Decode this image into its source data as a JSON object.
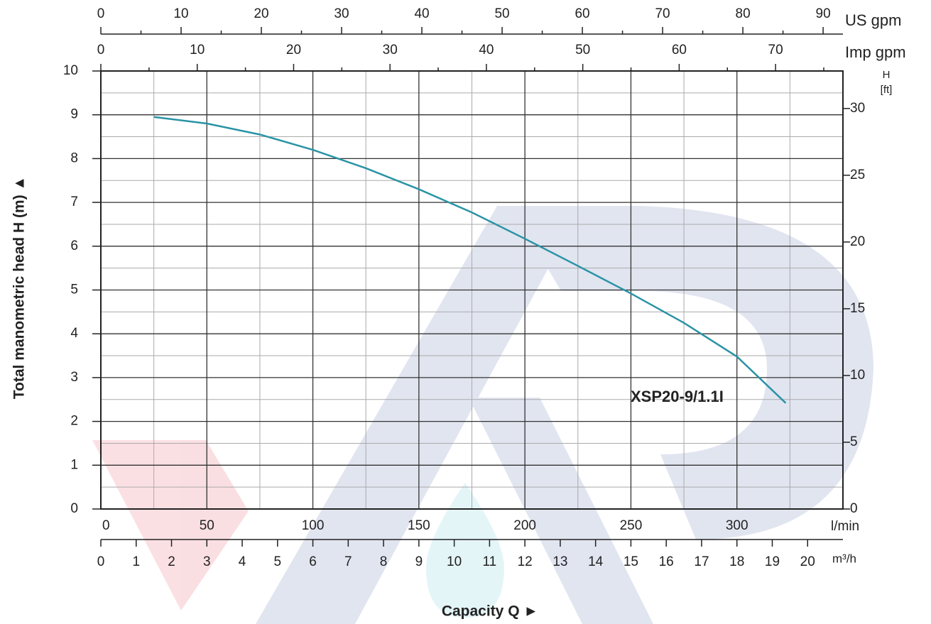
{
  "chart_data": {
    "type": "line",
    "xlabel": "Capacity Q ►",
    "ylabel": "Total manometric head H (m) ▲",
    "xunit": "l/min",
    "xlim": [
      0,
      350
    ],
    "xticks": [
      0,
      50,
      100,
      150,
      200,
      250,
      300
    ],
    "minor_xticks": [
      25,
      75,
      125,
      175,
      225,
      275,
      325
    ],
    "ylim": [
      0,
      10
    ],
    "yticks": [
      0,
      1,
      2,
      3,
      4,
      5,
      6,
      7,
      8,
      9,
      10
    ],
    "minor_yticks": [
      0.5,
      1.5,
      2.5,
      3.5,
      4.5,
      5.5,
      6.5,
      7.5,
      8.5,
      9.5
    ],
    "grid": true,
    "y2label": "H",
    "y2unit": "[ft]",
    "y2lim": [
      0,
      32.81
    ],
    "y2ticks": [
      0,
      5,
      10,
      15,
      20,
      25,
      30
    ],
    "top_axes": [
      {
        "label": "US gpm",
        "lim": [
          0,
          92.47
        ],
        "ticks": [
          0,
          10,
          20,
          30,
          40,
          50,
          60,
          70,
          80,
          90
        ],
        "minor_ticks": [
          5,
          15,
          25,
          35,
          45,
          55,
          65,
          75,
          85
        ]
      },
      {
        "label": "Imp gpm",
        "lim": [
          0,
          76.99
        ],
        "ticks": [
          0,
          10,
          20,
          30,
          40,
          50,
          60,
          70
        ],
        "minor_ticks": [
          5,
          15,
          25,
          35,
          45,
          55,
          65,
          75
        ]
      }
    ],
    "bottom_axis": {
      "label": "m³/h",
      "lim": [
        0,
        21
      ],
      "ticks": [
        0,
        1,
        2,
        3,
        4,
        5,
        6,
        7,
        8,
        9,
        10,
        11,
        12,
        13,
        14,
        15,
        16,
        17,
        18,
        19,
        20
      ]
    },
    "series": [
      {
        "name": "XSP20-9/1.1I",
        "color": "#2a93a6",
        "x": [
          25,
          50,
          75,
          100,
          125,
          150,
          175,
          200,
          225,
          250,
          275,
          300,
          323
        ],
        "values": [
          8.95,
          8.8,
          8.55,
          8.2,
          7.78,
          7.3,
          6.77,
          6.17,
          5.55,
          4.92,
          4.25,
          3.48,
          2.42
        ]
      }
    ]
  }
}
